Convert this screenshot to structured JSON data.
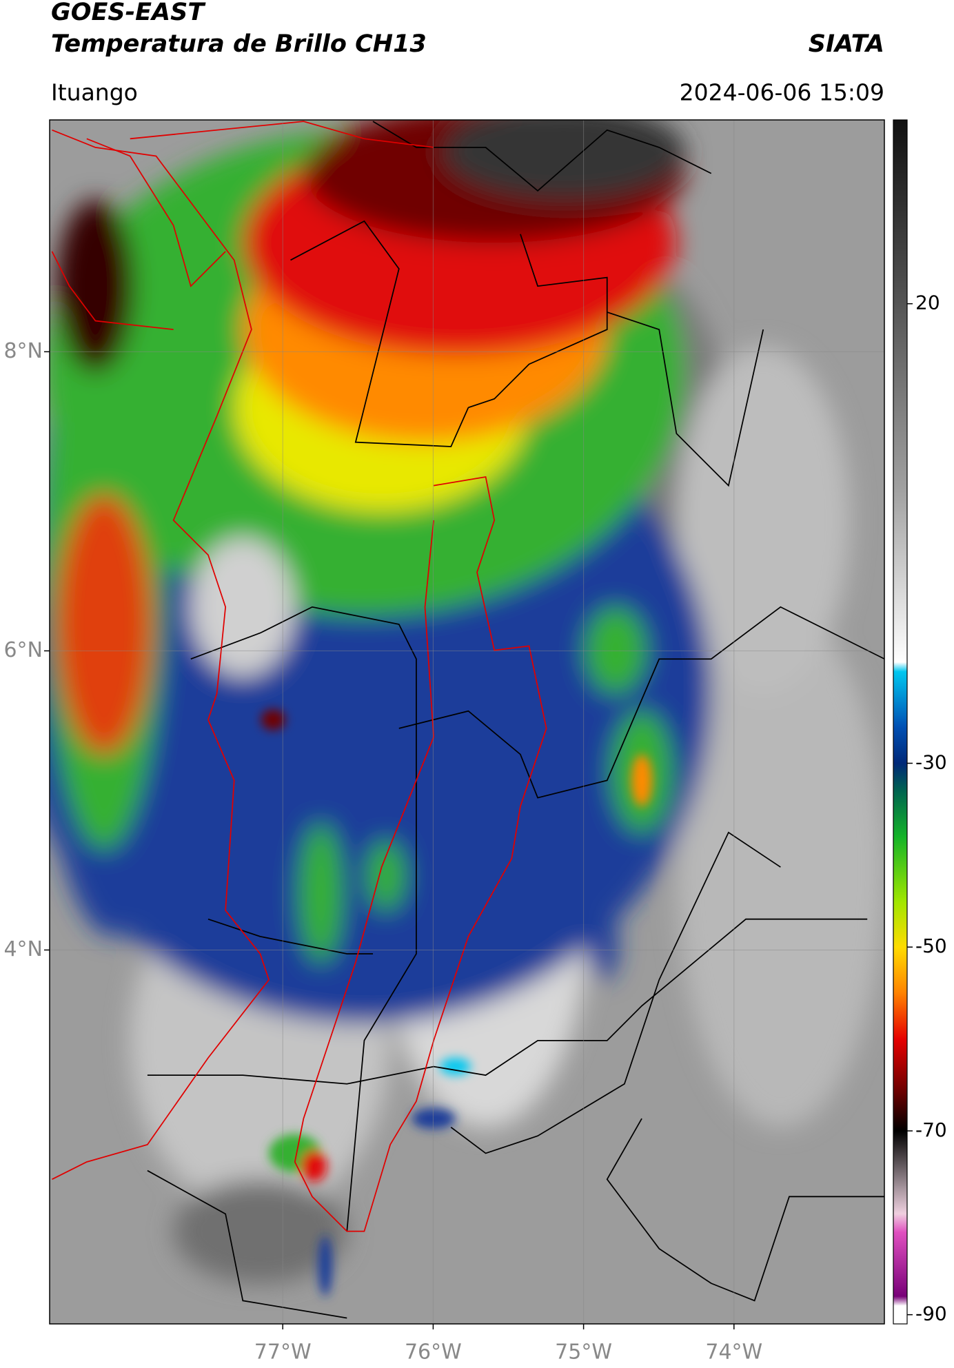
{
  "header": {
    "title": "GOES-EAST",
    "subtitle": "Temperatura de Brillo CH13",
    "source": "SIATA",
    "location": "Ituango",
    "timestamp": "2024-06-06 15:09"
  },
  "map": {
    "latlim": [
      1.5,
      9.55
    ],
    "lonlim": [
      -78.55,
      -73.0
    ],
    "lat_ticks": [
      {
        "value": 8,
        "label": "8°N"
      },
      {
        "value": 6,
        "label": "6°N"
      },
      {
        "value": 4,
        "label": "4°N"
      }
    ],
    "lon_ticks": [
      {
        "value": -77,
        "label": "77°W"
      },
      {
        "value": -76,
        "label": "76°W"
      },
      {
        "value": -75,
        "label": "75°W"
      },
      {
        "value": -74,
        "label": "74°W"
      }
    ]
  },
  "colorbar": {
    "lim": [
      -91,
      40
    ],
    "ticks": [
      20,
      -30,
      -50,
      -70,
      -90
    ],
    "stops": [
      {
        "value": 40,
        "color": "#111111"
      },
      {
        "value": 20,
        "color": "#555555"
      },
      {
        "value": 0,
        "color": "#a0a0a0"
      },
      {
        "value": -19,
        "color": "#ffffff"
      },
      {
        "value": -20,
        "color": "#00c8f0"
      },
      {
        "value": -26,
        "color": "#0050b4"
      },
      {
        "value": -30,
        "color": "#002878"
      },
      {
        "value": -33,
        "color": "#006450"
      },
      {
        "value": -38,
        "color": "#14b428"
      },
      {
        "value": -45,
        "color": "#a0e600"
      },
      {
        "value": -50,
        "color": "#ffdc00"
      },
      {
        "value": -55,
        "color": "#ff8200"
      },
      {
        "value": -60,
        "color": "#e60000"
      },
      {
        "value": -66,
        "color": "#640000"
      },
      {
        "value": -70,
        "color": "#000000"
      },
      {
        "value": -76,
        "color": "#a09098"
      },
      {
        "value": -79,
        "color": "#f0d0e0"
      },
      {
        "value": -81,
        "color": "#e050c0"
      },
      {
        "value": -88,
        "color": "#780078"
      },
      {
        "value": -89,
        "color": "#ffffff"
      },
      {
        "value": -91,
        "color": "#ffffff"
      }
    ]
  }
}
